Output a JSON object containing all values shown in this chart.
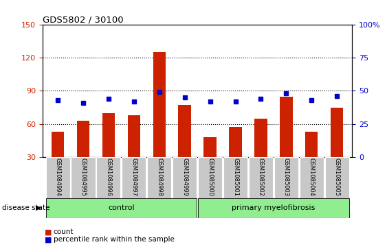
{
  "title": "GDS5802 / 30100",
  "samples": [
    "GSM1084994",
    "GSM1084995",
    "GSM1084996",
    "GSM1084997",
    "GSM1084998",
    "GSM1084999",
    "GSM1085000",
    "GSM1085001",
    "GSM1085002",
    "GSM1085003",
    "GSM1085004",
    "GSM1085005"
  ],
  "counts": [
    53,
    63,
    70,
    68,
    125,
    77,
    48,
    57,
    65,
    85,
    53,
    75
  ],
  "percentile_ranks": [
    43,
    41,
    44,
    42,
    49,
    45,
    42,
    42,
    44,
    48,
    43,
    46
  ],
  "groups": [
    "control",
    "control",
    "control",
    "control",
    "control",
    "control",
    "primary myelofibrosis",
    "primary myelofibrosis",
    "primary myelofibrosis",
    "primary myelofibrosis",
    "primary myelofibrosis",
    "primary myelofibrosis"
  ],
  "bar_color": "#CC2200",
  "dot_color": "#0000CC",
  "left_yticks": [
    30,
    60,
    90,
    120,
    150
  ],
  "right_yticks": [
    0,
    25,
    50,
    75,
    100
  ],
  "ylim_left": [
    30,
    150
  ],
  "ylim_right": [
    0,
    100
  ],
  "grid_lines": [
    60,
    90,
    120
  ],
  "control_color": "#90EE90",
  "myelofibrosis_color": "#90EE90",
  "tick_label_bg": "#C8C8C8",
  "left_axis_color": "#CC2200",
  "right_axis_color": "#0000CC"
}
